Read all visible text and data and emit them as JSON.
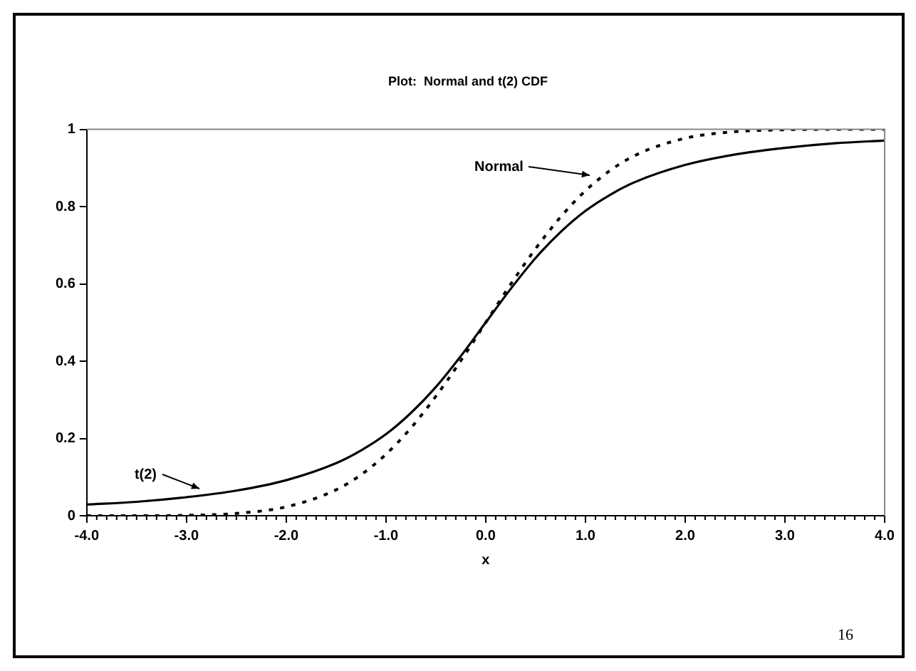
{
  "chart_data": {
    "type": "line",
    "title": "Plot:  Normal and t(2) CDF",
    "xlabel": "x",
    "x": [
      -4,
      -3.5,
      -3,
      -2.5,
      -2,
      -1.5,
      -1.25,
      -1,
      -0.75,
      -0.5,
      -0.25,
      0,
      0.25,
      0.5,
      0.75,
      1,
      1.25,
      1.5,
      2,
      2.5,
      3,
      3.5,
      4
    ],
    "series": [
      {
        "color": "#000000",
        "line_style": "dotted",
        "values": [
          0,
          0,
          0.001,
          0.006,
          0.023,
          0.067,
          0.106,
          0.159,
          0.227,
          0.309,
          0.401,
          0.5,
          0.599,
          0.691,
          0.773,
          0.841,
          0.894,
          0.933,
          0.977,
          0.994,
          0.999,
          1,
          1
        ]
      },
      {
        "color": "#000000",
        "line_style": "solid",
        "values": [
          0.029,
          0.036,
          0.048,
          0.065,
          0.092,
          0.136,
          0.169,
          0.211,
          0.266,
          0.333,
          0.413,
          0.5,
          0.587,
          0.667,
          0.734,
          0.789,
          0.831,
          0.864,
          0.908,
          0.935,
          0.952,
          0.964,
          0.971
        ]
      }
    ],
    "xlim": [
      -4,
      4
    ],
    "xticks": [
      {
        "value": -4,
        "label": "-4.0"
      },
      {
        "value": -3,
        "label": "-3.0"
      },
      {
        "value": -2,
        "label": "-2.0"
      },
      {
        "value": -1,
        "label": "-1.0"
      },
      {
        "value": 0,
        "label": "0.0"
      },
      {
        "value": 1,
        "label": "1.0"
      },
      {
        "value": 2,
        "label": "2.0"
      },
      {
        "value": 3,
        "label": "3.0"
      },
      {
        "value": 4,
        "label": "4.0"
      }
    ],
    "ylim": [
      0,
      1
    ],
    "yticks": [
      0,
      0.2,
      0.4,
      0.6,
      0.8,
      1
    ],
    "annotations": [
      {
        "text": "Normal",
        "x": 1.05,
        "y": 0.88
      },
      {
        "text": "t(2)",
        "x": -2.87,
        "y": 0.07
      },
      "16"
    ],
    "grid": false,
    "legend": false,
    "marker": "none"
  }
}
